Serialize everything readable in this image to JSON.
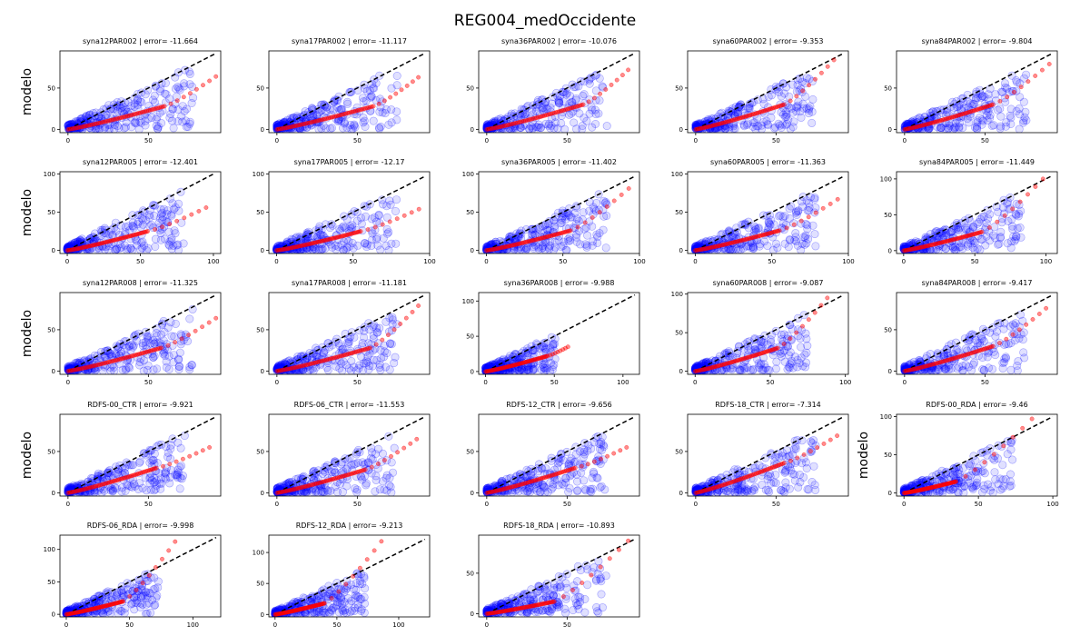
{
  "figure": {
    "title": "REG004_medOccidente",
    "row_ylabel": "modelo",
    "colors": {
      "scatter": "#0000ff",
      "quantile": "#ff0000",
      "identity": "#000000"
    }
  },
  "chart_data": [
    {
      "type": "scatter",
      "title": "syna12PAR002 | error= -11.664",
      "xlim": [
        -5,
        95
      ],
      "ylim": [
        -4,
        95
      ],
      "xticks": [
        0,
        50
      ],
      "yticks": [
        0,
        50
      ],
      "ylabel": "modelo",
      "quantile_end": [
        92,
        64
      ],
      "quantile_knee": [
        60,
        28
      ],
      "seed": 1
    },
    {
      "type": "scatter",
      "title": "syna17PAR002 | error= -11.117",
      "xlim": [
        -5,
        95
      ],
      "ylim": [
        -4,
        95
      ],
      "xticks": [
        0,
        50
      ],
      "yticks": [
        0,
        50
      ],
      "ylabel": "",
      "quantile_end": [
        88,
        63
      ],
      "quantile_knee": [
        60,
        28
      ],
      "seed": 2
    },
    {
      "type": "scatter",
      "title": "syna36PAR002 | error= -10.076",
      "xlim": [
        -5,
        95
      ],
      "ylim": [
        -4,
        95
      ],
      "xticks": [
        0,
        50
      ],
      "yticks": [
        0,
        50
      ],
      "ylabel": "",
      "quantile_end": [
        88,
        72
      ],
      "quantile_knee": [
        60,
        30
      ],
      "seed": 3
    },
    {
      "type": "scatter",
      "title": "syna60PAR002 | error= -9.353",
      "xlim": [
        -5,
        95
      ],
      "ylim": [
        -4,
        95
      ],
      "xticks": [
        0,
        50
      ],
      "yticks": [
        0,
        50
      ],
      "ylabel": "",
      "quantile_end": [
        86,
        84
      ],
      "quantile_knee": [
        55,
        30
      ],
      "seed": 4
    },
    {
      "type": "scatter",
      "title": "syna84PAR002 | error= -9.804",
      "xlim": [
        -5,
        95
      ],
      "ylim": [
        -4,
        95
      ],
      "xticks": [
        0,
        50
      ],
      "yticks": [
        0,
        50
      ],
      "ylabel": "",
      "quantile_end": [
        90,
        79
      ],
      "quantile_knee": [
        55,
        30
      ],
      "seed": 5
    },
    {
      "type": "scatter",
      "title": "syna12PAR005 | error= -12.401",
      "xlim": [
        -5,
        105
      ],
      "ylim": [
        -4,
        103
      ],
      "xticks": [
        0,
        50,
        100
      ],
      "yticks": [
        0,
        50,
        100
      ],
      "ylabel": "modelo",
      "quantile_end": [
        95,
        56
      ],
      "quantile_knee": [
        55,
        25
      ],
      "seed": 6
    },
    {
      "type": "scatter",
      "title": "syna17PAR005 | error= -12.17",
      "xlim": [
        -5,
        100
      ],
      "ylim": [
        -4,
        103
      ],
      "xticks": [
        0,
        50,
        100
      ],
      "yticks": [
        0,
        50,
        100
      ],
      "ylabel": "",
      "quantile_end": [
        93,
        54
      ],
      "quantile_knee": [
        55,
        25
      ],
      "seed": 7
    },
    {
      "type": "scatter",
      "title": "syna36PAR005 | error= -11.402",
      "xlim": [
        -5,
        100
      ],
      "ylim": [
        -4,
        103
      ],
      "xticks": [
        0,
        50,
        100
      ],
      "yticks": [
        0,
        50,
        100
      ],
      "ylabel": "",
      "quantile_end": [
        93,
        81
      ],
      "quantile_knee": [
        55,
        26
      ],
      "seed": 8
    },
    {
      "type": "scatter",
      "title": "syna60PAR005 | error= -11.363",
      "xlim": [
        -5,
        100
      ],
      "ylim": [
        -4,
        103
      ],
      "xticks": [
        0,
        50,
        100
      ],
      "yticks": [
        0,
        50,
        100
      ],
      "ylabel": "",
      "quantile_end": [
        93,
        67
      ],
      "quantile_knee": [
        55,
        26
      ],
      "seed": 9
    },
    {
      "type": "scatter",
      "title": "syna84PAR005 | error= -11.449",
      "xlim": [
        -5,
        108
      ],
      "ylim": [
        -4,
        110
      ],
      "xticks": [
        0,
        50,
        100
      ],
      "yticks": [
        0,
        50,
        100
      ],
      "ylabel": "",
      "quantile_end": [
        98,
        100
      ],
      "quantile_knee": [
        55,
        26
      ],
      "seed": 10
    },
    {
      "type": "scatter",
      "title": "syna12PAR008 | error= -11.325",
      "xlim": [
        -5,
        95
      ],
      "ylim": [
        -4,
        95
      ],
      "xticks": [
        0,
        50
      ],
      "yticks": [
        0,
        50
      ],
      "ylabel": "modelo",
      "quantile_end": [
        92,
        64
      ],
      "quantile_knee": [
        58,
        28
      ],
      "seed": 11
    },
    {
      "type": "scatter",
      "title": "syna17PAR008 | error= -11.181",
      "xlim": [
        -5,
        95
      ],
      "ylim": [
        -4,
        95
      ],
      "xticks": [
        0,
        50
      ],
      "yticks": [
        0,
        50
      ],
      "ylabel": "",
      "quantile_end": [
        88,
        79
      ],
      "quantile_knee": [
        58,
        28
      ],
      "seed": 12
    },
    {
      "type": "scatter",
      "title": "syna36PAR008 | error= -9.988",
      "xlim": [
        -5,
        112
      ],
      "ylim": [
        -4,
        112
      ],
      "xticks": [
        0,
        50,
        100
      ],
      "yticks": [
        0,
        50,
        100
      ],
      "ylabel": "",
      "quantile_end": [
        60,
        35
      ],
      "quantile_knee": [
        45,
        22
      ],
      "seed": 13
    },
    {
      "type": "scatter",
      "title": "syna60PAR008 | error= -9.087",
      "xlim": [
        -5,
        102
      ],
      "ylim": [
        -4,
        102
      ],
      "xticks": [
        0,
        50,
        100
      ],
      "yticks": [
        0,
        50,
        100
      ],
      "ylabel": "",
      "quantile_end": [
        88,
        95
      ],
      "quantile_knee": [
        55,
        30
      ],
      "seed": 14
    },
    {
      "type": "scatter",
      "title": "syna84PAR008 | error= -9.417",
      "xlim": [
        -5,
        95
      ],
      "ylim": [
        -4,
        95
      ],
      "xticks": [
        0,
        50
      ],
      "yticks": [
        0,
        50
      ],
      "ylabel": "",
      "quantile_end": [
        88,
        76
      ],
      "quantile_knee": [
        55,
        30
      ],
      "seed": 15
    },
    {
      "type": "scatter",
      "title": "RDFS-00_CTR | error= -9.921",
      "xlim": [
        -5,
        95
      ],
      "ylim": [
        -4,
        95
      ],
      "xticks": [
        0,
        50
      ],
      "yticks": [
        0,
        50
      ],
      "ylabel": "modelo",
      "quantile_end": [
        88,
        55
      ],
      "quantile_knee": [
        55,
        30
      ],
      "seed": 16
    },
    {
      "type": "scatter",
      "title": "RDFS-06_CTR | error= -11.553",
      "xlim": [
        -5,
        95
      ],
      "ylim": [
        -4,
        95
      ],
      "xticks": [
        0,
        50
      ],
      "yticks": [
        0,
        50
      ],
      "ylabel": "",
      "quantile_end": [
        87,
        65
      ],
      "quantile_knee": [
        55,
        28
      ],
      "seed": 17
    },
    {
      "type": "scatter",
      "title": "RDFS-12_CTR | error= -9.656",
      "xlim": [
        -5,
        95
      ],
      "ylim": [
        -4,
        95
      ],
      "xticks": [
        0,
        50
      ],
      "yticks": [
        0,
        50
      ],
      "ylabel": "",
      "quantile_end": [
        87,
        55
      ],
      "quantile_knee": [
        55,
        30
      ],
      "seed": 18
    },
    {
      "type": "scatter",
      "title": "RDFS-18_CTR | error= -7.314",
      "xlim": [
        -5,
        95
      ],
      "ylim": [
        -4,
        95
      ],
      "xticks": [
        0,
        50
      ],
      "yticks": [
        0,
        50
      ],
      "ylabel": "",
      "quantile_end": [
        88,
        69
      ],
      "quantile_knee": [
        55,
        36
      ],
      "seed": 19
    },
    {
      "type": "scatter",
      "title": "RDFS-00_RDA | error= -9.46",
      "xlim": [
        -5,
        103
      ],
      "ylim": [
        -4,
        103
      ],
      "xticks": [
        0,
        50,
        100
      ],
      "yticks": [
        0,
        50,
        100
      ],
      "ylabel": "modelo",
      "quantile_end": [
        86,
        97
      ],
      "quantile_knee": [
        35,
        15
      ],
      "seed": 20
    },
    {
      "type": "scatter",
      "title": "RDFS-06_RDA | error= -9.998",
      "xlim": [
        -5,
        122
      ],
      "ylim": [
        -4,
        122
      ],
      "xticks": [
        0,
        50,
        100
      ],
      "yticks": [
        0,
        50,
        100
      ],
      "ylabel": "",
      "quantile_end": [
        86,
        112
      ],
      "quantile_knee": [
        45,
        20
      ],
      "seed": 21
    },
    {
      "type": "scatter",
      "title": "RDFS-12_RDA | error= -9.213",
      "xlim": [
        -5,
        125
      ],
      "ylim": [
        -4,
        128
      ],
      "xticks": [
        0,
        50,
        100
      ],
      "yticks": [
        0,
        50,
        100
      ],
      "ylabel": "",
      "quantile_end": [
        86,
        118
      ],
      "quantile_knee": [
        40,
        18
      ],
      "seed": 22
    },
    {
      "type": "scatter",
      "title": "RDFS-18_RDA | error= -10.893",
      "xlim": [
        -5,
        95
      ],
      "ylim": [
        -4,
        97
      ],
      "xticks": [
        0,
        50
      ],
      "yticks": [
        0,
        50
      ],
      "ylabel": "",
      "quantile_end": [
        88,
        90
      ],
      "quantile_knee": [
        42,
        15
      ],
      "seed": 23
    }
  ]
}
